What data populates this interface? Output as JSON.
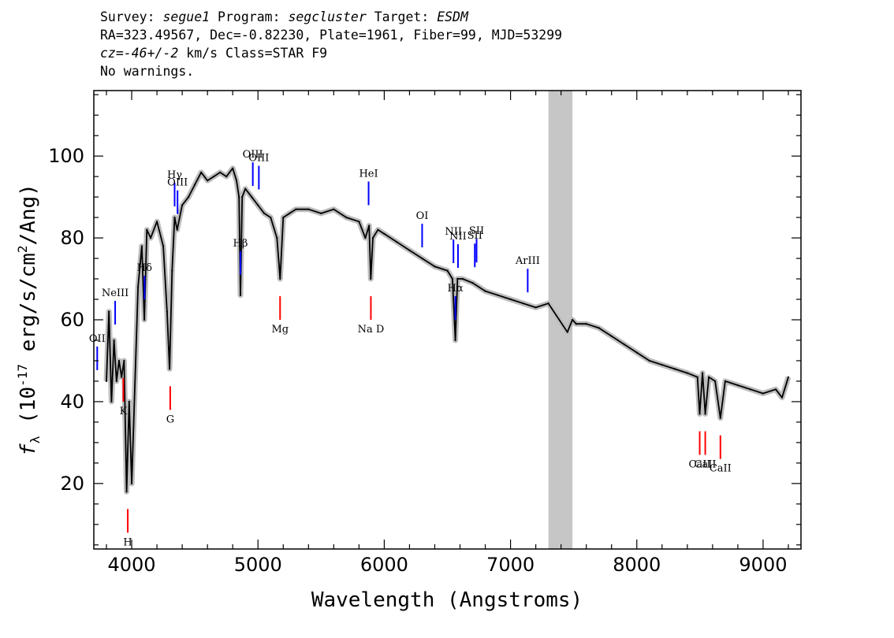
{
  "header": {
    "survey_label": "Survey: ",
    "survey_value": "segue1",
    "program_label": " Program: ",
    "program_value": "segcluster",
    "target_label": " Target: ",
    "target_value": "ESDM",
    "line2": "RA=323.49567, Dec=-0.82230, Plate=1961, Fiber=99, MJD=53299",
    "cz_label": "cz",
    "cz_value": "=-46+/-2",
    "cz_rest": " km/s Class=STAR F9",
    "line4": "No warnings."
  },
  "chart_data": {
    "type": "line",
    "xlabel": "Wavelength (Angstroms)",
    "ylabel": "f_λ (10^-17 erg/s/cm^2/Ang)",
    "xlim": [
      3700,
      9300
    ],
    "ylim": [
      4,
      116
    ],
    "x_ticks": [
      4000,
      5000,
      6000,
      7000,
      8000,
      9000
    ],
    "y_ticks": [
      20,
      40,
      60,
      80,
      100
    ],
    "masked_region": [
      7300,
      7490
    ],
    "colors": {
      "flux": "#000000",
      "error_band": "#bdbdbd",
      "mask": "#c6c6c6",
      "emission_lines": "#0000ff",
      "absorption_lines": "#ff0000"
    },
    "series": [
      {
        "x": [
          3800,
          3820,
          3840,
          3860,
          3880,
          3900,
          3920,
          3940,
          3960,
          3980,
          4000,
          4050,
          4080,
          4100,
          4120,
          4150,
          4200,
          4250,
          4280,
          4300,
          4320,
          4340,
          4360,
          4400,
          4450,
          4500,
          4550,
          4600,
          4650,
          4700,
          4750,
          4800,
          4830,
          4850,
          4861,
          4875,
          4900,
          4950,
          5000,
          5050,
          5100,
          5150,
          5175,
          5200,
          5250,
          5300,
          5400,
          5500,
          5600,
          5700,
          5800,
          5850,
          5880,
          5893,
          5910,
          5950,
          6000,
          6100,
          6200,
          6300,
          6400,
          6500,
          6540,
          6563,
          6580,
          6620,
          6700,
          6800,
          6900,
          7000,
          7100,
          7200,
          7300,
          7450,
          7490,
          7520,
          7600,
          7700,
          7800,
          7900,
          8000,
          8100,
          8200,
          8300,
          8400,
          8480,
          8498,
          8520,
          8542,
          8570,
          8620,
          8662,
          8700,
          8800,
          8900,
          9000,
          9100,
          9150,
          9200
        ],
        "y": [
          45,
          62,
          40,
          55,
          45,
          50,
          46,
          50,
          18,
          40,
          20,
          68,
          78,
          60,
          82,
          80,
          84,
          78,
          62,
          48,
          72,
          85,
          82,
          88,
          90,
          93,
          96,
          94,
          95,
          96,
          95,
          97,
          94,
          90,
          66,
          90,
          92,
          90,
          88,
          86,
          85,
          80,
          70,
          85,
          86,
          87,
          87,
          86,
          87,
          85,
          84,
          80,
          83,
          70,
          80,
          82,
          81,
          79,
          77,
          75,
          73,
          72,
          70,
          55,
          70,
          70,
          69,
          67,
          66,
          65,
          64,
          63,
          64,
          57,
          60,
          59,
          59,
          58,
          56,
          54,
          52,
          50,
          49,
          48,
          47,
          46,
          37,
          47,
          37,
          46,
          45,
          36,
          45,
          44,
          43,
          42,
          43,
          41,
          46
        ]
      }
    ],
    "emission_lines": [
      {
        "label": "OII",
        "x": 3727
      },
      {
        "label": "NeIII",
        "x": 3869
      },
      {
        "label": "Hδ",
        "x": 4102
      },
      {
        "label": "Hγ",
        "x": 4340
      },
      {
        "label": "OIII",
        "x": 4363
      },
      {
        "label": "Hβ",
        "x": 4861
      },
      {
        "label": "OIII",
        "x": 4959
      },
      {
        "label": "OIII",
        "x": 5007
      },
      {
        "label": "HeI",
        "x": 5876
      },
      {
        "label": "OI",
        "x": 6300
      },
      {
        "label": "NII",
        "x": 6548
      },
      {
        "label": "Hα",
        "x": 6563
      },
      {
        "label": "NII",
        "x": 6584
      },
      {
        "label": "SII",
        "x": 6717
      },
      {
        "label": "SII",
        "x": 6731
      },
      {
        "label": "ArIII",
        "x": 7136
      }
    ],
    "absorption_lines": [
      {
        "label": "K",
        "x": 3934
      },
      {
        "label": "H",
        "x": 3969
      },
      {
        "label": "G",
        "x": 4305
      },
      {
        "label": "Mg",
        "x": 5175
      },
      {
        "label": "Na  D",
        "x": 5894
      },
      {
        "label": "CaII",
        "x": 8498
      },
      {
        "label": "CaII",
        "x": 8542
      },
      {
        "label": "CaII",
        "x": 8662
      }
    ]
  }
}
